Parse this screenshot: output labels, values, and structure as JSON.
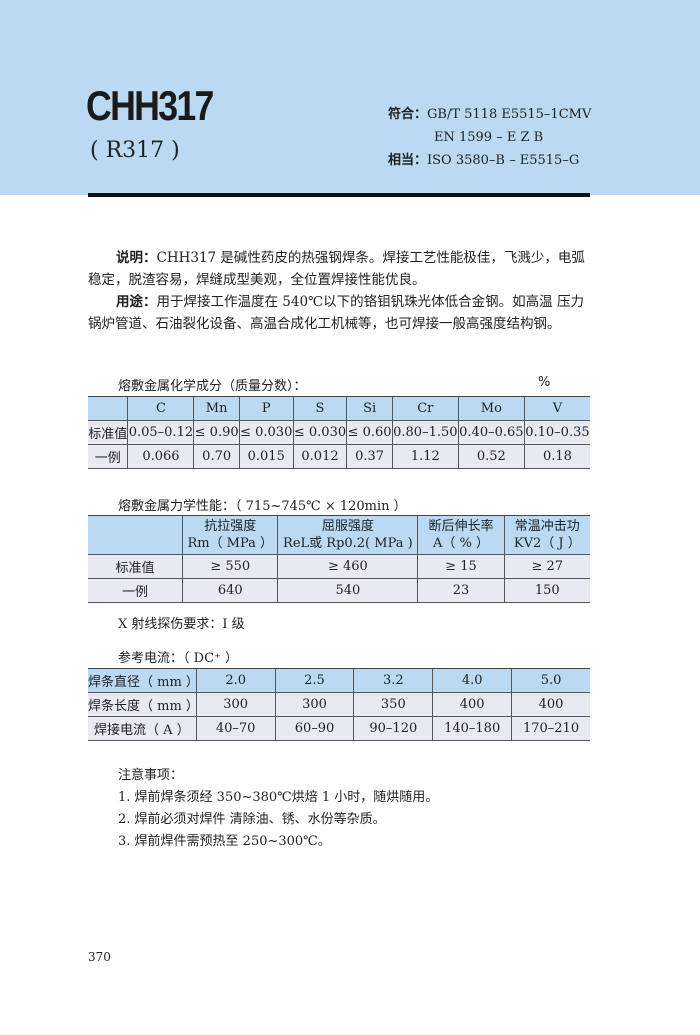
{
  "header": {
    "title": "CHH317",
    "subtitle": "( R317 )",
    "standards": [
      {
        "label": "符合：",
        "value": "GB/T 5118 E5515–1CMV"
      },
      {
        "label": "",
        "value": "EN 1599 – E Z B"
      },
      {
        "label": "相当：",
        "value": "ISO 3580–B – E5515–G"
      }
    ],
    "band_color": "#b9daf2"
  },
  "description": {
    "label": "说明：",
    "text": "CHH317 是碱性药皮的热强钢焊条。焊接工艺性能极佳，飞溅少，电弧稳定，脱渣容易，焊缝成型美观，全位置焊接性能优良。"
  },
  "usage": {
    "label": "用途：",
    "text": "用于焊接工作温度在 540℃以下的铬钼钒珠光体低合金钢。如高温 压力锅炉管道、石油裂化设备、高温合成化工机械等，也可焊接一般高强度结构钢。"
  },
  "chem": {
    "title": "熔敷金属化学成分（质量分数）：",
    "unit": "%",
    "headers": [
      "",
      "C",
      "Mn",
      "P",
      "S",
      "Si",
      "Cr",
      "Mo",
      "V"
    ],
    "rows": [
      [
        "标准值",
        "0.05–0.12",
        "≤ 0.90",
        "≤ 0.030",
        "≤ 0.030",
        "≤ 0.60",
        "0.80–1.50",
        "0.40–0.65",
        "0.10–0.35"
      ],
      [
        "一例",
        "0.066",
        "0.70",
        "0.015",
        "0.012",
        "0.37",
        "1.12",
        "0.52",
        "0.18"
      ]
    ]
  },
  "mech": {
    "title": "熔敷金属力学性能：",
    "condition": "（ 715~745℃ × 120min ）",
    "headers": [
      [
        "",
        ""
      ],
      [
        "抗拉强度",
        "Rm（ MPa ）"
      ],
      [
        "屈服强度",
        "ReL或 Rp0.2( MPa )"
      ],
      [
        "断后伸长率",
        "A（ % ）"
      ],
      [
        "常温冲击功",
        "KV2（ J ）"
      ]
    ],
    "rows": [
      [
        "标准值",
        "≥ 550",
        "≥ 460",
        "≥ 15",
        "≥ 27"
      ],
      [
        "一例",
        "640",
        "540",
        "23",
        "150"
      ]
    ],
    "xray": "X 射线探伤要求：I 级"
  },
  "current": {
    "title": "参考电流：",
    "type": "（ DC⁺ ）",
    "rows": [
      [
        "焊条直径（ mm ）",
        "2.0",
        "2.5",
        "3.2",
        "4.0",
        "5.0"
      ],
      [
        "焊条长度（ mm ）",
        "300",
        "300",
        "350",
        "400",
        "400"
      ],
      [
        "焊接电流（ A ）",
        "40–70",
        "60–90",
        "90–120",
        "140–180",
        "170–210"
      ]
    ]
  },
  "notes": {
    "title": "注意事项：",
    "items": [
      "1. 焊前焊条须经 350~380℃烘焙 1 小时，随烘随用。",
      "2. 焊前必须对焊件 清除油、锈、水份等杂质。",
      "3. 焊前焊件需预热至 250~300℃。"
    ]
  },
  "page_number": "370"
}
